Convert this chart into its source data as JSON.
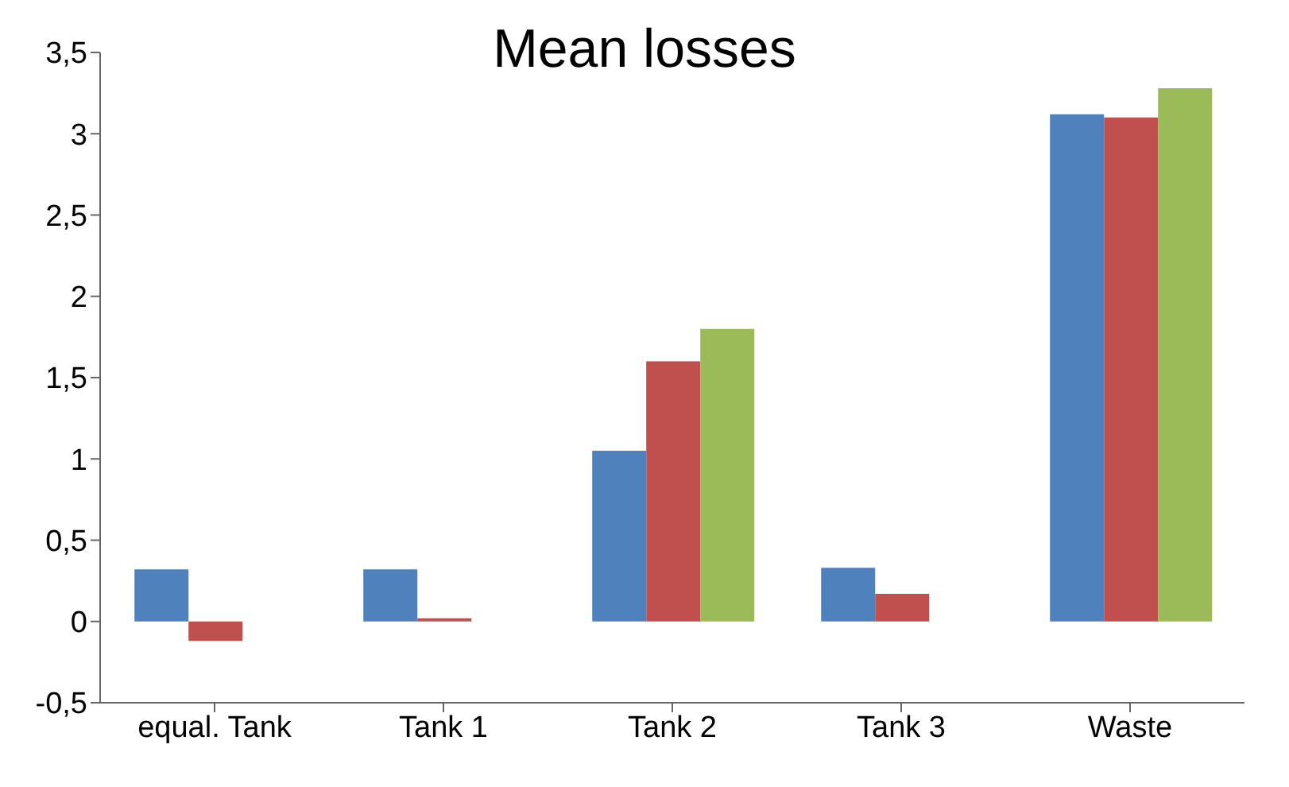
{
  "chart_data": {
    "type": "bar",
    "title": "Mean losses",
    "categories": [
      "equal. Tank",
      "Tank 1",
      "Tank 2",
      "Tank 3",
      "Waste"
    ],
    "series": [
      {
        "color": "#4f81bd",
        "values": [
          0.32,
          0.32,
          1.05,
          0.33,
          3.12
        ]
      },
      {
        "color": "#c0504d",
        "values": [
          -0.12,
          0.02,
          1.6,
          0.17,
          3.1
        ]
      },
      {
        "color": "#9bbb59",
        "values": [
          null,
          null,
          1.8,
          null,
          3.28
        ]
      }
    ],
    "ylim": [
      -0.5,
      3.5
    ],
    "yticks": [
      {
        "value": -0.5,
        "label": "-0,5"
      },
      0,
      {
        "value": 0.5,
        "label": "0,5"
      },
      1,
      {
        "value": 1.5,
        "label": "1,5"
      },
      2,
      {
        "value": 2.5,
        "label": "2,5"
      },
      3,
      {
        "value": 3.5,
        "label": "3,5"
      }
    ],
    "grid": false,
    "legend": false
  }
}
